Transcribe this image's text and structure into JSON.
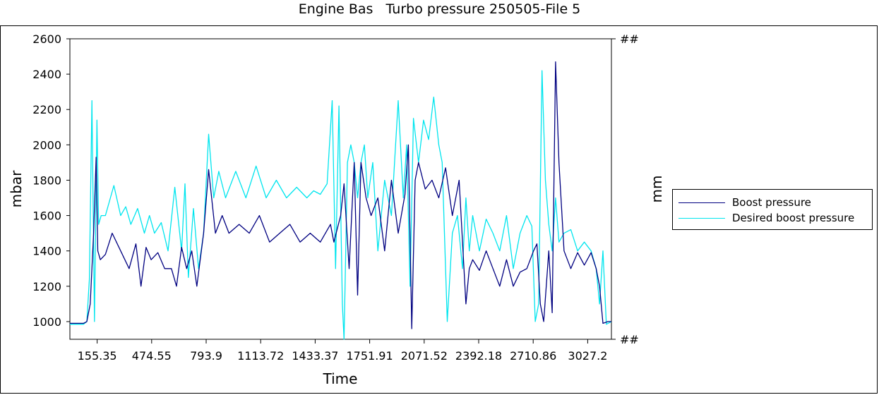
{
  "chart_data": {
    "type": "line",
    "title": "Engine Bas   Turbo pressure 250505-File 5",
    "xlabel": "Time",
    "ylabel": "mbar",
    "y2label": "mm",
    "y2_ticks": [
      "##",
      "##"
    ],
    "xlim": [
      0,
      3200
    ],
    "ylim": [
      900,
      2600
    ],
    "x_ticks": [
      "155.35",
      "474.55",
      "793.9",
      "1113.72",
      "1433.37",
      "1751.91",
      "2071.52",
      "2392.18",
      "2710.86",
      "3027.2"
    ],
    "y_ticks": [
      "1000",
      "1200",
      "1400",
      "1600",
      "1800",
      "2000",
      "2200",
      "2400",
      "2600"
    ],
    "grid": false,
    "legend_position": "right",
    "series": [
      {
        "name": "Boost pressure",
        "color": "#000080",
        "x": [
          0,
          80,
          100,
          120,
          140,
          155,
          165,
          180,
          210,
          250,
          300,
          350,
          390,
          420,
          450,
          480,
          520,
          560,
          600,
          630,
          660,
          690,
          720,
          750,
          790,
          820,
          860,
          900,
          940,
          1000,
          1060,
          1120,
          1180,
          1240,
          1300,
          1360,
          1420,
          1480,
          1540,
          1560,
          1600,
          1620,
          1650,
          1680,
          1700,
          1720,
          1750,
          1780,
          1820,
          1860,
          1900,
          1940,
          1980,
          2000,
          2020,
          2040,
          2060,
          2100,
          2140,
          2180,
          2220,
          2260,
          2300,
          2340,
          2360,
          2380,
          2420,
          2460,
          2500,
          2540,
          2580,
          2620,
          2660,
          2700,
          2740,
          2760,
          2780,
          2800,
          2830,
          2850,
          2870,
          2890,
          2920,
          2960,
          3000,
          3040,
          3080,
          3110,
          3130,
          3150,
          3180,
          3200
        ],
        "y": [
          990,
          990,
          1000,
          1100,
          1500,
          1930,
          1400,
          1350,
          1380,
          1500,
          1400,
          1300,
          1440,
          1200,
          1420,
          1350,
          1390,
          1300,
          1300,
          1200,
          1420,
          1300,
          1400,
          1200,
          1500,
          1860,
          1500,
          1600,
          1500,
          1550,
          1500,
          1600,
          1450,
          1500,
          1550,
          1450,
          1500,
          1450,
          1550,
          1450,
          1600,
          1780,
          1300,
          1900,
          1150,
          1900,
          1700,
          1600,
          1700,
          1400,
          1800,
          1500,
          1720,
          2000,
          960,
          1800,
          1900,
          1750,
          1800,
          1700,
          1870,
          1600,
          1800,
          1100,
          1300,
          1350,
          1290,
          1400,
          1300,
          1200,
          1350,
          1200,
          1280,
          1300,
          1400,
          1440,
          1100,
          1000,
          1400,
          1050,
          2470,
          1900,
          1400,
          1300,
          1390,
          1320,
          1390,
          1300,
          1200,
          990,
          1000,
          1000
        ]
      },
      {
        "name": "Desired boost pressure",
        "color": "#00e5ee",
        "x": [
          0,
          80,
          100,
          115,
          130,
          145,
          160,
          170,
          185,
          210,
          260,
          300,
          330,
          360,
          400,
          440,
          470,
          500,
          540,
          580,
          620,
          660,
          680,
          700,
          730,
          760,
          790,
          820,
          850,
          880,
          920,
          980,
          1040,
          1100,
          1160,
          1220,
          1280,
          1340,
          1400,
          1440,
          1480,
          1520,
          1550,
          1570,
          1590,
          1610,
          1620,
          1640,
          1660,
          1680,
          1700,
          1720,
          1740,
          1760,
          1790,
          1820,
          1860,
          1900,
          1940,
          1970,
          1990,
          2010,
          2030,
          2060,
          2090,
          2120,
          2150,
          2180,
          2200,
          2230,
          2260,
          2290,
          2320,
          2340,
          2360,
          2380,
          2420,
          2460,
          2500,
          2540,
          2580,
          2620,
          2660,
          2700,
          2730,
          2750,
          2770,
          2790,
          2810,
          2830,
          2850,
          2870,
          2890,
          2920,
          2960,
          3000,
          3040,
          3080,
          3110,
          3130,
          3150,
          3170,
          3200
        ],
        "y": [
          985,
          985,
          1000,
          1240,
          2250,
          1000,
          2140,
          1550,
          1600,
          1600,
          1770,
          1600,
          1650,
          1550,
          1640,
          1500,
          1600,
          1500,
          1560,
          1400,
          1760,
          1400,
          1780,
          1250,
          1640,
          1300,
          1500,
          2060,
          1700,
          1850,
          1700,
          1850,
          1700,
          1880,
          1700,
          1800,
          1700,
          1760,
          1700,
          1740,
          1720,
          1780,
          2250,
          1300,
          2220,
          1100,
          900,
          1900,
          2000,
          1900,
          1700,
          1900,
          2000,
          1700,
          1900,
          1400,
          1800,
          1600,
          2250,
          1700,
          2000,
          1200,
          2150,
          1900,
          2140,
          2030,
          2270,
          2000,
          1900,
          1000,
          1500,
          1600,
          1300,
          1700,
          1400,
          1600,
          1400,
          1580,
          1500,
          1400,
          1600,
          1300,
          1500,
          1600,
          1540,
          1000,
          1100,
          2420,
          1800,
          1550,
          1400,
          1700,
          1450,
          1500,
          1520,
          1400,
          1450,
          1400,
          1300,
          1100,
          1400,
          985,
          1000
        ]
      }
    ]
  }
}
